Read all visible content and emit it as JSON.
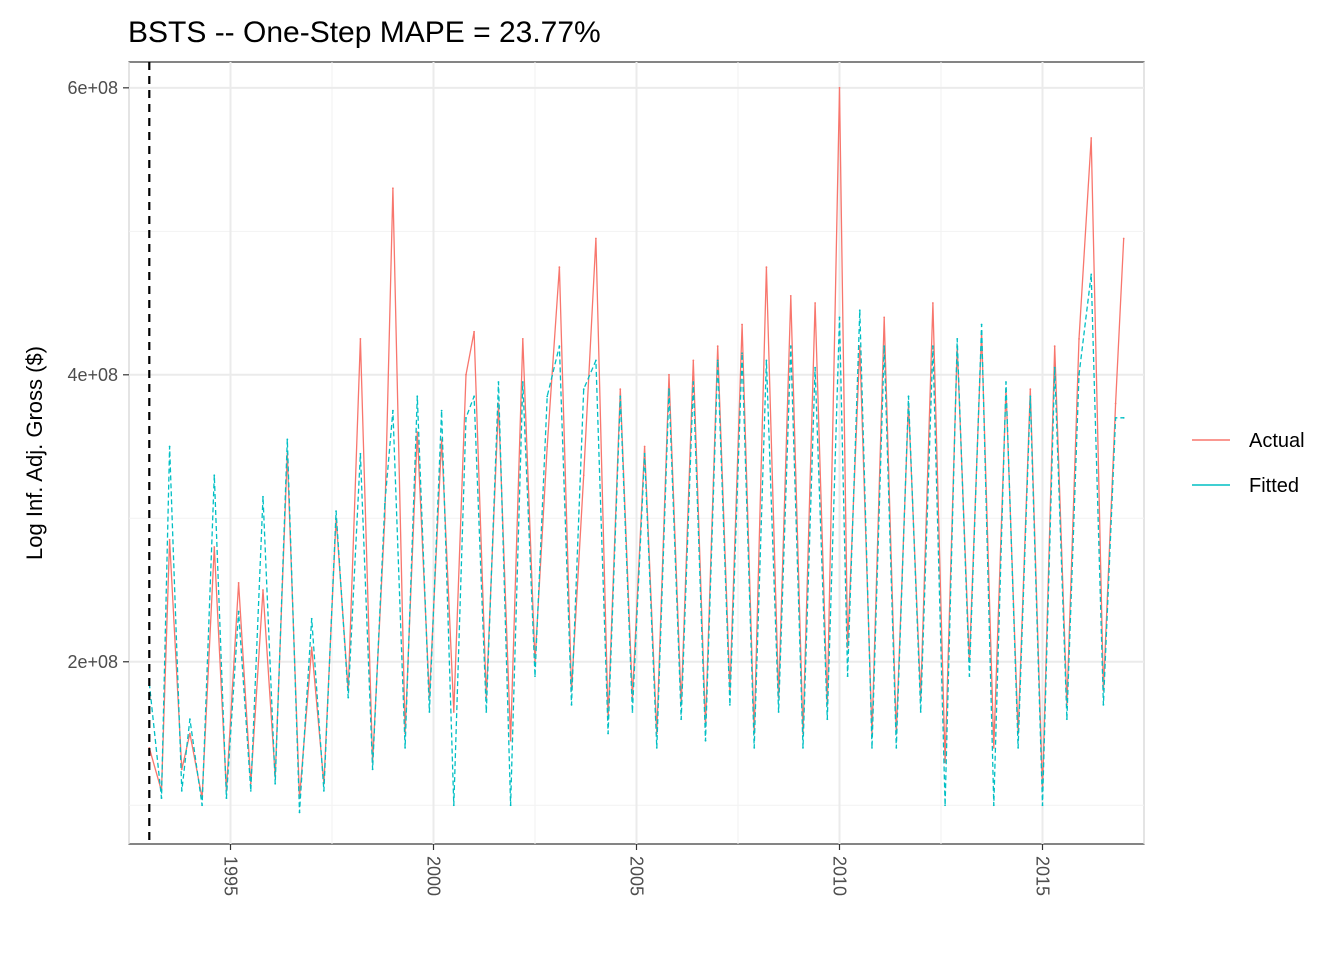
{
  "chart_data": {
    "type": "line",
    "title": "BSTS -- One-Step MAPE = 23.77%",
    "xlabel": "",
    "ylabel": "Log Inf. Adj. Gross ($)",
    "xlim": [
      1992.5,
      2017.5
    ],
    "ylim": [
      73000000,
      618000000
    ],
    "x_ticks": [
      1995,
      2000,
      2005,
      2010,
      2015
    ],
    "x_tick_labels": [
      "1995",
      "2000",
      "2005",
      "2010",
      "2015"
    ],
    "y_ticks": [
      200000000,
      400000000,
      600000000
    ],
    "y_tick_labels": [
      "2e+08",
      "4e+08",
      "6e+08"
    ],
    "grid": true,
    "legend_position": "right",
    "vline": {
      "x": 1993.0,
      "style": "dashed",
      "color": "#000000"
    },
    "series": [
      {
        "name": "Actual",
        "color": "#F8766D",
        "dash": "solid",
        "x": [
          1993.0,
          1993.3,
          1993.5,
          1993.8,
          1994.0,
          1994.3,
          1994.6,
          1994.9,
          1995.2,
          1995.5,
          1995.8,
          1996.1,
          1996.4,
          1996.7,
          1997.0,
          1997.3,
          1997.6,
          1997.9,
          1998.2,
          1998.5,
          1998.8,
          1999.0,
          1999.3,
          1999.6,
          1999.9,
          2000.2,
          2000.5,
          2000.8,
          2001.0,
          2001.3,
          2001.6,
          2001.9,
          2002.2,
          2002.5,
          2002.8,
          2003.1,
          2003.4,
          2003.7,
          2004.0,
          2004.3,
          2004.6,
          2004.9,
          2005.2,
          2005.5,
          2005.8,
          2006.1,
          2006.4,
          2006.7,
          2007.0,
          2007.3,
          2007.6,
          2007.9,
          2008.2,
          2008.5,
          2008.8,
          2009.1,
          2009.4,
          2009.7,
          2010.0,
          2010.2,
          2010.5,
          2010.8,
          2011.1,
          2011.4,
          2011.7,
          2012.0,
          2012.3,
          2012.6,
          2012.9,
          2013.2,
          2013.5,
          2013.8,
          2014.1,
          2014.4,
          2014.7,
          2015.0,
          2015.3,
          2015.6,
          2015.9,
          2016.2,
          2016.5,
          2016.8,
          2017.0
        ],
        "values": [
          140000000,
          110000000,
          285000000,
          125000000,
          150000000,
          105000000,
          280000000,
          110000000,
          255000000,
          115000000,
          250000000,
          120000000,
          345000000,
          105000000,
          210000000,
          115000000,
          300000000,
          180000000,
          425000000,
          130000000,
          300000000,
          530000000,
          150000000,
          360000000,
          175000000,
          355000000,
          165000000,
          400000000,
          430000000,
          175000000,
          380000000,
          145000000,
          425000000,
          200000000,
          350000000,
          475000000,
          180000000,
          330000000,
          495000000,
          160000000,
          390000000,
          175000000,
          350000000,
          150000000,
          400000000,
          170000000,
          410000000,
          155000000,
          420000000,
          180000000,
          435000000,
          150000000,
          475000000,
          175000000,
          455000000,
          150000000,
          450000000,
          170000000,
          600000000,
          210000000,
          420000000,
          150000000,
          440000000,
          150000000,
          380000000,
          175000000,
          450000000,
          130000000,
          420000000,
          200000000,
          430000000,
          140000000,
          390000000,
          150000000,
          390000000,
          110000000,
          420000000,
          170000000,
          425000000,
          565000000,
          180000000,
          380000000,
          495000000
        ]
      },
      {
        "name": "Fitted",
        "color": "#00BFC4",
        "dash": "dashed",
        "x": [
          1993.0,
          1993.3,
          1993.5,
          1993.8,
          1994.0,
          1994.3,
          1994.6,
          1994.9,
          1995.2,
          1995.5,
          1995.8,
          1996.1,
          1996.4,
          1996.7,
          1997.0,
          1997.3,
          1997.6,
          1997.9,
          1998.2,
          1998.5,
          1998.8,
          1999.0,
          1999.3,
          1999.6,
          1999.9,
          2000.2,
          2000.5,
          2000.8,
          2001.0,
          2001.3,
          2001.6,
          2001.9,
          2002.2,
          2002.5,
          2002.8,
          2003.1,
          2003.4,
          2003.7,
          2004.0,
          2004.3,
          2004.6,
          2004.9,
          2005.2,
          2005.5,
          2005.8,
          2006.1,
          2006.4,
          2006.7,
          2007.0,
          2007.3,
          2007.6,
          2007.9,
          2008.2,
          2008.5,
          2008.8,
          2009.1,
          2009.4,
          2009.7,
          2010.0,
          2010.2,
          2010.5,
          2010.8,
          2011.1,
          2011.4,
          2011.7,
          2012.0,
          2012.3,
          2012.6,
          2012.9,
          2013.2,
          2013.5,
          2013.8,
          2014.1,
          2014.4,
          2014.7,
          2015.0,
          2015.3,
          2015.6,
          2015.9,
          2016.2,
          2016.5,
          2016.8,
          2017.0
        ],
        "values": [
          185000000,
          105000000,
          350000000,
          110000000,
          160000000,
          100000000,
          330000000,
          105000000,
          235000000,
          110000000,
          315000000,
          115000000,
          355000000,
          95000000,
          230000000,
          110000000,
          305000000,
          175000000,
          345000000,
          125000000,
          310000000,
          375000000,
          140000000,
          385000000,
          165000000,
          375000000,
          100000000,
          370000000,
          385000000,
          165000000,
          395000000,
          100000000,
          395000000,
          190000000,
          385000000,
          420000000,
          170000000,
          390000000,
          410000000,
          150000000,
          385000000,
          165000000,
          345000000,
          140000000,
          390000000,
          160000000,
          395000000,
          145000000,
          410000000,
          170000000,
          415000000,
          140000000,
          410000000,
          165000000,
          420000000,
          140000000,
          405000000,
          160000000,
          440000000,
          190000000,
          445000000,
          140000000,
          420000000,
          140000000,
          385000000,
          165000000,
          420000000,
          100000000,
          425000000,
          190000000,
          435000000,
          100000000,
          395000000,
          140000000,
          385000000,
          100000000,
          405000000,
          160000000,
          400000000,
          470000000,
          170000000,
          370000000,
          370000000
        ]
      }
    ]
  }
}
